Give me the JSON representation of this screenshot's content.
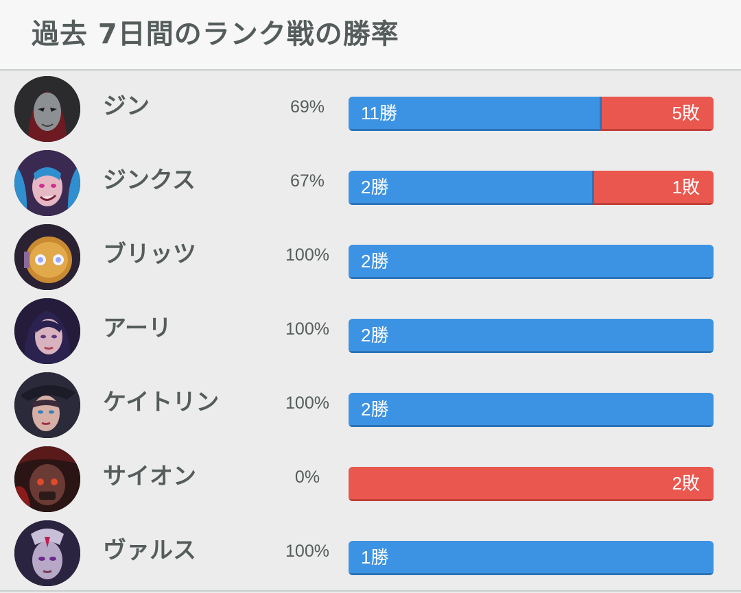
{
  "header": {
    "title": "過去 7日間のランク戦の勝率"
  },
  "colors": {
    "win": "#3d93e3",
    "loss": "#ea574f",
    "text": "#555c5c"
  },
  "champions": [
    {
      "name": "ジン",
      "win_rate": "69%",
      "wins": 11,
      "losses": 5,
      "win_label": "11勝",
      "loss_label": "5敗",
      "portrait_icon": "jhin-portrait-icon"
    },
    {
      "name": "ジンクス",
      "win_rate": "67%",
      "wins": 2,
      "losses": 1,
      "win_label": "2勝",
      "loss_label": "1敗",
      "portrait_icon": "jinx-portrait-icon"
    },
    {
      "name": "ブリッツ",
      "win_rate": "100%",
      "wins": 2,
      "losses": 0,
      "win_label": "2勝",
      "loss_label": "",
      "portrait_icon": "blitzcrank-portrait-icon"
    },
    {
      "name": "アーリ",
      "win_rate": "100%",
      "wins": 2,
      "losses": 0,
      "win_label": "2勝",
      "loss_label": "",
      "portrait_icon": "ahri-portrait-icon"
    },
    {
      "name": "ケイトリン",
      "win_rate": "100%",
      "wins": 2,
      "losses": 0,
      "win_label": "2勝",
      "loss_label": "",
      "portrait_icon": "caitlyn-portrait-icon"
    },
    {
      "name": "サイオン",
      "win_rate": "0%",
      "wins": 0,
      "losses": 2,
      "win_label": "",
      "loss_label": "2敗",
      "portrait_icon": "sion-portrait-icon"
    },
    {
      "name": "ヴァルス",
      "win_rate": "100%",
      "wins": 1,
      "losses": 0,
      "win_label": "1勝",
      "loss_label": "",
      "portrait_icon": "varus-portrait-icon"
    }
  ]
}
